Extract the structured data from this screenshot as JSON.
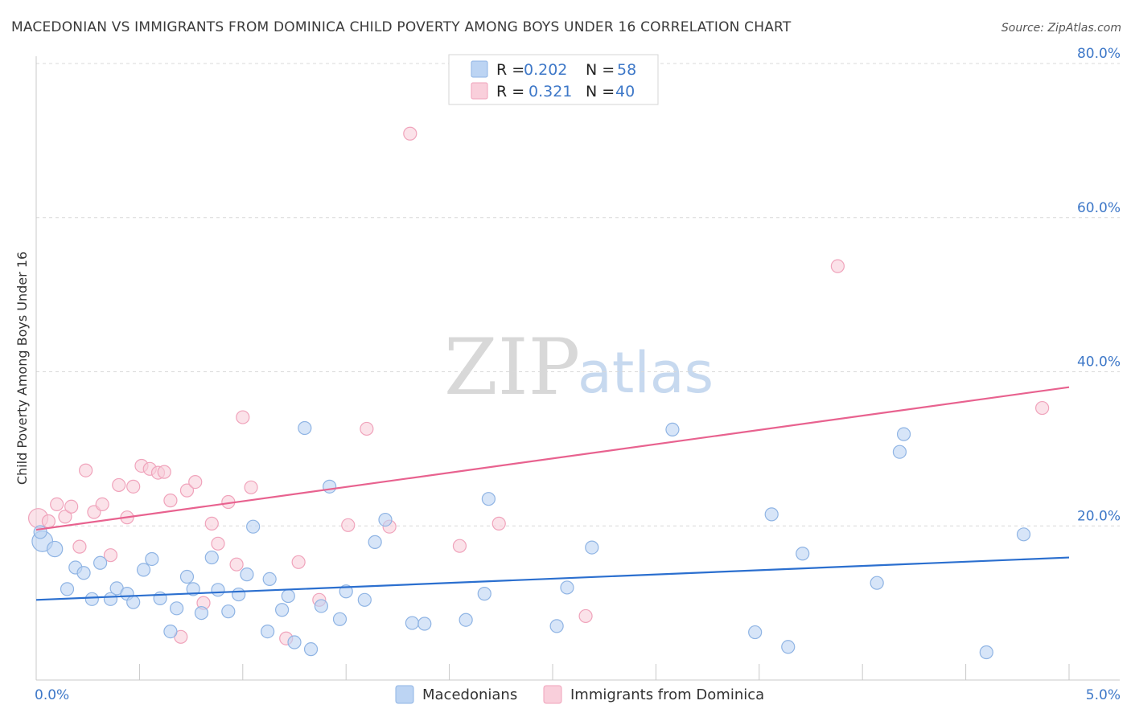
{
  "title": "MACEDONIAN VS IMMIGRANTS FROM DOMINICA CHILD POVERTY AMONG BOYS UNDER 16 CORRELATION CHART",
  "source": "Source: ZipAtlas.com",
  "watermark": {
    "zip": "ZIP",
    "atlas": "atlas"
  },
  "colors": {
    "blue_fill": "#bcd4f3",
    "blue_stroke": "#8fb4e4",
    "blue_line": "#2b6fcf",
    "pink_fill": "#f9cfdb",
    "pink_stroke": "#f0a3bb",
    "pink_line": "#e8628f",
    "grid": "#d9d9d9",
    "axis_text": "#3e78c8"
  },
  "legend": {
    "rows": [
      {
        "r_label": "R =",
        "r_value": "0.202",
        "n_label": "N =",
        "n_value": "58"
      },
      {
        "r_label": "R =",
        "r_value": "0.321",
        "n_label": "N =",
        "n_value": "40"
      }
    ]
  },
  "bottom_legend": [
    "Macedonians",
    "Immigrants from Dominica"
  ],
  "chart_data": {
    "type": "scatter",
    "title": "MACEDONIAN VS IMMIGRANTS FROM DOMINICA CHILD POVERTY AMONG BOYS UNDER 16 CORRELATION CHART",
    "xlabel": "",
    "ylabel": "Child Poverty Among Boys Under 16",
    "xlim": [
      0,
      5
    ],
    "ylim": [
      0,
      80
    ],
    "x_ticks": [
      "0.0%",
      "5.0%"
    ],
    "y_ticks": [
      {
        "value": 20,
        "label": "20.0%"
      },
      {
        "value": 40,
        "label": "40.0%"
      },
      {
        "value": 60,
        "label": "60.0%"
      },
      {
        "value": 80,
        "label": "80.0%"
      }
    ],
    "series": [
      {
        "name": "Macedonians",
        "r": 0.202,
        "n": 58,
        "trend": {
          "x": [
            0,
            5
          ],
          "y": [
            10.4,
            15.9
          ]
        },
        "points": [
          {
            "x": 0.03,
            "y": 18.0,
            "s": 1.6
          },
          {
            "x": 0.09,
            "y": 17.0,
            "s": 1.2
          },
          {
            "x": 0.15,
            "y": 11.8,
            "s": 1
          },
          {
            "x": 0.19,
            "y": 14.6,
            "s": 1
          },
          {
            "x": 0.23,
            "y": 13.9,
            "s": 1
          },
          {
            "x": 0.27,
            "y": 10.5,
            "s": 1
          },
          {
            "x": 0.31,
            "y": 15.2,
            "s": 1
          },
          {
            "x": 0.36,
            "y": 10.5,
            "s": 1
          },
          {
            "x": 0.39,
            "y": 11.9,
            "s": 1
          },
          {
            "x": 0.44,
            "y": 11.2,
            "s": 1
          },
          {
            "x": 0.47,
            "y": 10.1,
            "s": 1
          },
          {
            "x": 0.52,
            "y": 14.3,
            "s": 1
          },
          {
            "x": 0.56,
            "y": 15.7,
            "s": 1
          },
          {
            "x": 0.6,
            "y": 10.6,
            "s": 1
          },
          {
            "x": 0.65,
            "y": 6.3,
            "s": 1
          },
          {
            "x": 0.68,
            "y": 9.3,
            "s": 1
          },
          {
            "x": 0.73,
            "y": 13.4,
            "s": 1
          },
          {
            "x": 0.76,
            "y": 11.8,
            "s": 1
          },
          {
            "x": 0.8,
            "y": 8.7,
            "s": 1
          },
          {
            "x": 0.85,
            "y": 15.9,
            "s": 1
          },
          {
            "x": 0.88,
            "y": 11.7,
            "s": 1
          },
          {
            "x": 0.93,
            "y": 8.9,
            "s": 1
          },
          {
            "x": 0.98,
            "y": 11.1,
            "s": 1
          },
          {
            "x": 1.02,
            "y": 13.7,
            "s": 1
          },
          {
            "x": 1.05,
            "y": 19.9,
            "s": 1
          },
          {
            "x": 1.12,
            "y": 6.3,
            "s": 1
          },
          {
            "x": 1.13,
            "y": 13.1,
            "s": 1
          },
          {
            "x": 1.19,
            "y": 9.1,
            "s": 1
          },
          {
            "x": 1.22,
            "y": 10.9,
            "s": 1
          },
          {
            "x": 1.25,
            "y": 4.9,
            "s": 1
          },
          {
            "x": 1.3,
            "y": 32.7,
            "s": 1
          },
          {
            "x": 1.33,
            "y": 4.0,
            "s": 1
          },
          {
            "x": 1.38,
            "y": 9.6,
            "s": 1
          },
          {
            "x": 1.42,
            "y": 25.1,
            "s": 1
          },
          {
            "x": 1.47,
            "y": 7.9,
            "s": 1
          },
          {
            "x": 1.5,
            "y": 11.5,
            "s": 1
          },
          {
            "x": 1.59,
            "y": 10.4,
            "s": 1
          },
          {
            "x": 1.64,
            "y": 17.9,
            "s": 1
          },
          {
            "x": 1.69,
            "y": 20.8,
            "s": 1
          },
          {
            "x": 1.82,
            "y": 7.4,
            "s": 1
          },
          {
            "x": 1.88,
            "y": 7.3,
            "s": 1
          },
          {
            "x": 2.08,
            "y": 7.8,
            "s": 1
          },
          {
            "x": 2.17,
            "y": 11.2,
            "s": 1
          },
          {
            "x": 2.19,
            "y": 23.5,
            "s": 1
          },
          {
            "x": 2.52,
            "y": 7.0,
            "s": 1
          },
          {
            "x": 2.57,
            "y": 12.0,
            "s": 1
          },
          {
            "x": 2.69,
            "y": 17.2,
            "s": 1
          },
          {
            "x": 3.08,
            "y": 32.5,
            "s": 1
          },
          {
            "x": 3.48,
            "y": 6.2,
            "s": 1
          },
          {
            "x": 3.56,
            "y": 21.5,
            "s": 1
          },
          {
            "x": 3.64,
            "y": 4.3,
            "s": 1
          },
          {
            "x": 3.71,
            "y": 16.4,
            "s": 1
          },
          {
            "x": 4.07,
            "y": 12.6,
            "s": 1
          },
          {
            "x": 4.18,
            "y": 29.6,
            "s": 1
          },
          {
            "x": 4.2,
            "y": 31.9,
            "s": 1
          },
          {
            "x": 4.6,
            "y": 3.6,
            "s": 1
          },
          {
            "x": 4.78,
            "y": 18.9,
            "s": 1
          },
          {
            "x": 0.02,
            "y": 19.2,
            "s": 1
          }
        ]
      },
      {
        "name": "Immigrants from Dominica",
        "r": 0.321,
        "n": 40,
        "trend": {
          "x": [
            0,
            5
          ],
          "y": [
            19.5,
            38.0
          ]
        },
        "points": [
          {
            "x": 0.01,
            "y": 21.0,
            "s": 1.5
          },
          {
            "x": 0.06,
            "y": 20.6,
            "s": 1
          },
          {
            "x": 0.1,
            "y": 22.8,
            "s": 1
          },
          {
            "x": 0.14,
            "y": 21.2,
            "s": 1
          },
          {
            "x": 0.17,
            "y": 22.5,
            "s": 1
          },
          {
            "x": 0.21,
            "y": 17.3,
            "s": 1
          },
          {
            "x": 0.24,
            "y": 27.2,
            "s": 1
          },
          {
            "x": 0.28,
            "y": 21.8,
            "s": 1
          },
          {
            "x": 0.32,
            "y": 22.8,
            "s": 1
          },
          {
            "x": 0.36,
            "y": 16.2,
            "s": 1
          },
          {
            "x": 0.4,
            "y": 25.3,
            "s": 1
          },
          {
            "x": 0.44,
            "y": 21.1,
            "s": 1
          },
          {
            "x": 0.47,
            "y": 25.1,
            "s": 1
          },
          {
            "x": 0.51,
            "y": 27.8,
            "s": 1
          },
          {
            "x": 0.55,
            "y": 27.4,
            "s": 1
          },
          {
            "x": 0.59,
            "y": 26.9,
            "s": 1
          },
          {
            "x": 0.62,
            "y": 27.0,
            "s": 1
          },
          {
            "x": 0.65,
            "y": 23.3,
            "s": 1
          },
          {
            "x": 0.7,
            "y": 5.6,
            "s": 1
          },
          {
            "x": 0.73,
            "y": 24.6,
            "s": 1
          },
          {
            "x": 0.77,
            "y": 25.7,
            "s": 1
          },
          {
            "x": 0.81,
            "y": 10.0,
            "s": 1
          },
          {
            "x": 0.85,
            "y": 20.3,
            "s": 1
          },
          {
            "x": 0.88,
            "y": 17.7,
            "s": 1
          },
          {
            "x": 0.93,
            "y": 23.1,
            "s": 1
          },
          {
            "x": 0.97,
            "y": 15.0,
            "s": 1
          },
          {
            "x": 1.0,
            "y": 34.1,
            "s": 1
          },
          {
            "x": 1.04,
            "y": 25.0,
            "s": 1
          },
          {
            "x": 1.21,
            "y": 5.4,
            "s": 1
          },
          {
            "x": 1.27,
            "y": 15.3,
            "s": 1
          },
          {
            "x": 1.37,
            "y": 10.4,
            "s": 1
          },
          {
            "x": 1.51,
            "y": 20.1,
            "s": 1
          },
          {
            "x": 1.6,
            "y": 32.6,
            "s": 1
          },
          {
            "x": 1.71,
            "y": 19.9,
            "s": 1
          },
          {
            "x": 1.81,
            "y": 70.9,
            "s": 1
          },
          {
            "x": 2.05,
            "y": 17.4,
            "s": 1
          },
          {
            "x": 2.24,
            "y": 20.3,
            "s": 1
          },
          {
            "x": 2.66,
            "y": 8.3,
            "s": 1
          },
          {
            "x": 3.88,
            "y": 53.7,
            "s": 1
          },
          {
            "x": 4.87,
            "y": 35.3,
            "s": 1
          }
        ]
      }
    ]
  }
}
